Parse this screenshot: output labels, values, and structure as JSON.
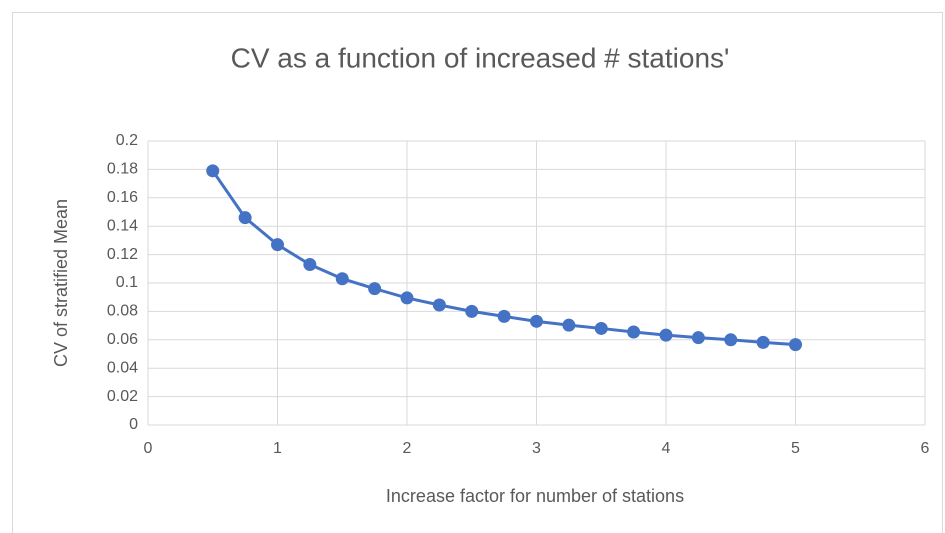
{
  "chart_data": {
    "type": "line",
    "title": "CV as a function of increased # stations'",
    "xlabel": "Increase factor for number of stations",
    "ylabel": "CV of stratified Mean",
    "x": [
      0.5,
      0.75,
      1,
      1.25,
      1.5,
      1.75,
      2,
      2.25,
      2.5,
      2.75,
      3,
      3.25,
      3.5,
      3.75,
      4,
      4.25,
      4.5,
      4.75,
      5
    ],
    "series": [
      {
        "name": "CV",
        "color": "#4472c4",
        "values": [
          0.179,
          0.146,
          0.127,
          0.113,
          0.103,
          0.096,
          0.0895,
          0.0845,
          0.08,
          0.0765,
          0.073,
          0.0703,
          0.068,
          0.0655,
          0.0633,
          0.0615,
          0.06,
          0.0582,
          0.0566
        ]
      }
    ],
    "xlim": [
      0,
      6
    ],
    "xticks": [
      0,
      1,
      2,
      3,
      4,
      5,
      6
    ],
    "ylim": [
      0,
      0.2
    ],
    "yticks": [
      0,
      0.02,
      0.04,
      0.06,
      0.08,
      0.1,
      0.12,
      0.14,
      0.16,
      0.18,
      0.2
    ],
    "grid": true
  }
}
